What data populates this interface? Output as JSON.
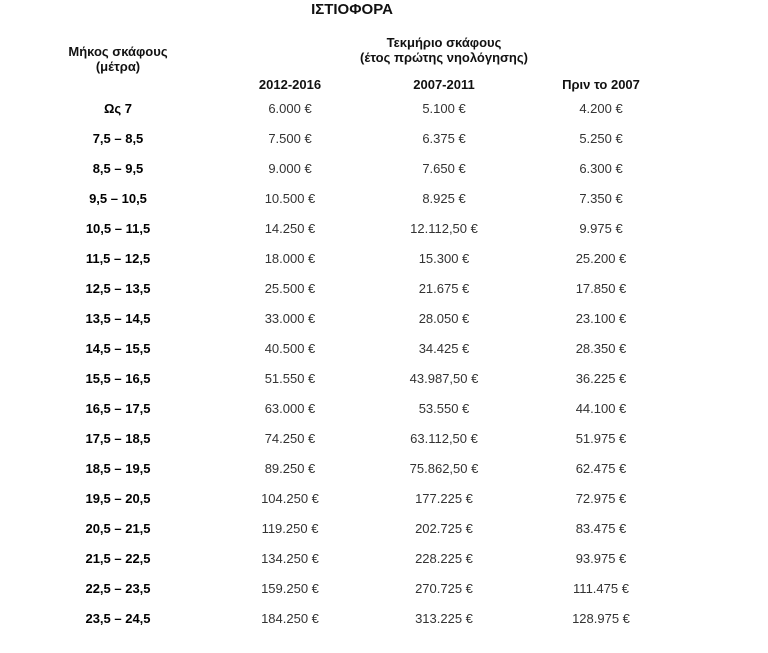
{
  "title": "ΙΣΤΙΟΦΟΡΑ",
  "header": {
    "length_line1": "Μήκος σκάφους",
    "length_line2": "(μέτρα)",
    "tekmirio_line1": "Τεκμήριο σκάφους",
    "tekmirio_line2": "(έτος πρώτης νηολόγησης)",
    "years": [
      "2012-2016",
      "2007-2011",
      "Πριν το 2007"
    ]
  },
  "rows": [
    {
      "length": "Ως 7",
      "values": [
        "6.000 €",
        "5.100 €",
        "4.200 €"
      ]
    },
    {
      "length": "7,5 – 8,5",
      "values": [
        "7.500 €",
        "6.375 €",
        "5.250 €"
      ]
    },
    {
      "length": "8,5 – 9,5",
      "values": [
        "9.000 €",
        "7.650 €",
        "6.300 €"
      ]
    },
    {
      "length": "9,5 – 10,5",
      "values": [
        "10.500 €",
        "8.925 €",
        "7.350 €"
      ]
    },
    {
      "length": "10,5 – 11,5",
      "values": [
        "14.250 €",
        "12.112,50 €",
        "9.975 €"
      ]
    },
    {
      "length": "11,5 – 12,5",
      "values": [
        "18.000 €",
        "15.300 €",
        "25.200 €"
      ]
    },
    {
      "length": "12,5 – 13,5",
      "values": [
        "25.500 €",
        "21.675 €",
        "17.850 €"
      ]
    },
    {
      "length": "13,5 – 14,5",
      "values": [
        "33.000 €",
        "28.050 €",
        "23.100 €"
      ]
    },
    {
      "length": "14,5 – 15,5",
      "values": [
        "40.500 €",
        "34.425 €",
        "28.350 €"
      ]
    },
    {
      "length": "15,5 – 16,5",
      "values": [
        "51.550 €",
        "43.987,50 €",
        "36.225 €"
      ]
    },
    {
      "length": "16,5 – 17,5",
      "values": [
        "63.000 €",
        "53.550 €",
        "44.100 €"
      ]
    },
    {
      "length": "17,5 – 18,5",
      "values": [
        "74.250 €",
        "63.112,50 €",
        "51.975 €"
      ]
    },
    {
      "length": "18,5 – 19,5",
      "values": [
        "89.250 €",
        "75.862,50 €",
        "62.475 €"
      ]
    },
    {
      "length": "19,5 – 20,5",
      "values": [
        "104.250 €",
        "177.225 €",
        "72.975 €"
      ]
    },
    {
      "length": "20,5 – 21,5",
      "values": [
        "119.250 €",
        "202.725 €",
        "83.475 €"
      ]
    },
    {
      "length": "21,5 – 22,5",
      "values": [
        "134.250 €",
        "228.225 €",
        "93.975 €"
      ]
    },
    {
      "length": "22,5 – 23,5",
      "values": [
        "159.250 €",
        "270.725 €",
        "111.475 €"
      ]
    },
    {
      "length": "23,5 – 24,5",
      "values": [
        "184.250 €",
        "313.225 €",
        "128.975 €"
      ]
    }
  ]
}
